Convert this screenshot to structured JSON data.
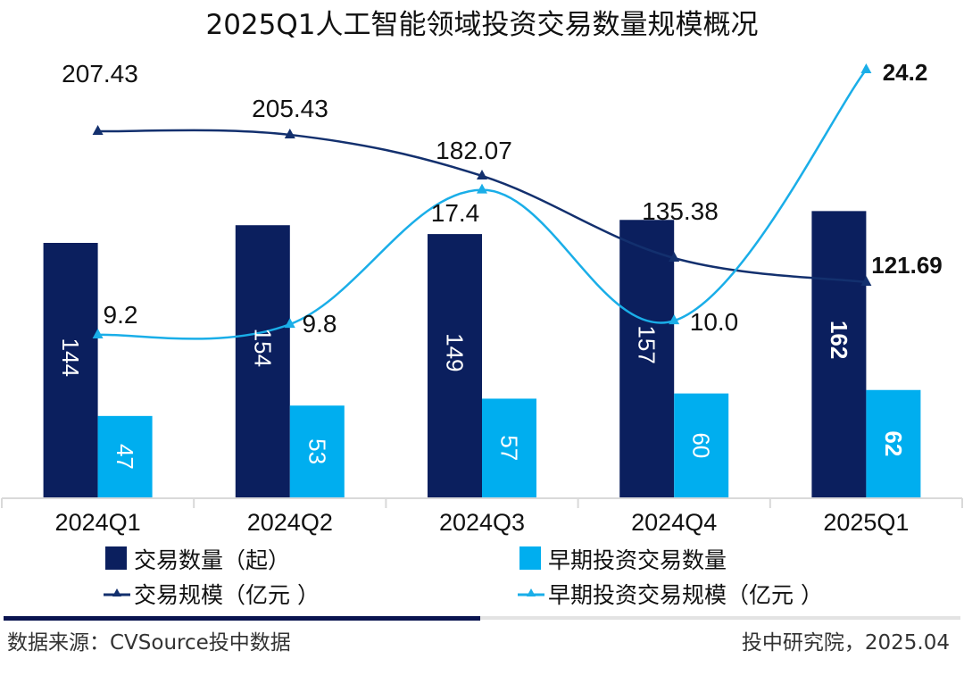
{
  "colors": {
    "dark_navy": "#0B1F5E",
    "light_blue": "#00AEEF",
    "dark_line": "#13306E",
    "light_line": "#1AAEE8",
    "axis": "#D9D9D9",
    "footer_bar_dark": "#0A1450",
    "footer_bar_light": "#E3E3E3"
  },
  "chart_data": {
    "type": "bar",
    "title": "2025Q1人工智能领域投资交易数量规模概况",
    "categories": [
      "2024Q1",
      "2024Q2",
      "2024Q3",
      "2024Q4",
      "2025Q1"
    ],
    "series": [
      {
        "name": "交易数量（起）",
        "kind": "bar",
        "axis": "left",
        "values": [
          144,
          154,
          149,
          157,
          162
        ],
        "labels": [
          "144",
          "154",
          "149",
          "157",
          "162"
        ]
      },
      {
        "name": "早期投资交易数量",
        "kind": "bar",
        "axis": "left",
        "values": [
          47,
          53,
          57,
          60,
          62
        ],
        "labels": [
          "47",
          "53",
          "57",
          "60",
          "62"
        ]
      },
      {
        "name": "交易规模（亿元 ）",
        "kind": "line",
        "axis": "secondary",
        "values": [
          207.43,
          205.43,
          182.07,
          135.38,
          121.69
        ],
        "labels": [
          "207.43",
          "205.43",
          "182.07",
          "135.38",
          "121.69"
        ]
      },
      {
        "name": "早期投资交易规模（亿元 ）",
        "kind": "line",
        "axis": "tertiary",
        "values": [
          9.2,
          9.8,
          17.4,
          10.0,
          24.2
        ],
        "labels": [
          "9.2",
          "9.8",
          "17.4",
          "10.0",
          "24.2"
        ]
      }
    ],
    "xlabel": "",
    "ylabel": "",
    "grid": false,
    "legend_position": "bottom",
    "bar_ylim": [
      0,
      280
    ]
  },
  "footer": {
    "source": "数据来源：CVSource投中数据",
    "credit": "投中研究院，2025.04"
  }
}
